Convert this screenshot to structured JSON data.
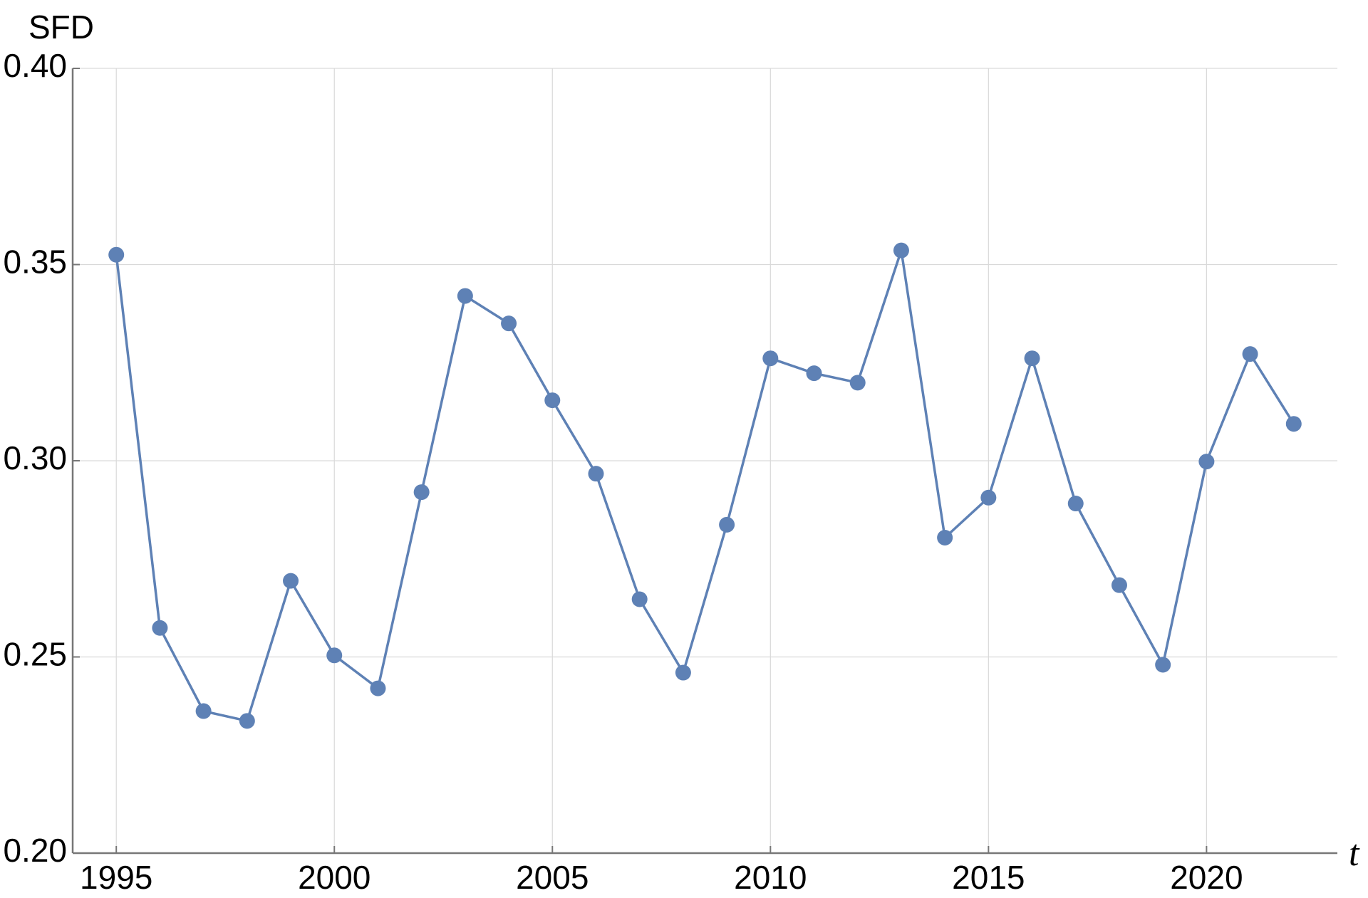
{
  "chart_data": {
    "type": "line",
    "ylabel": "SFD",
    "xlabel": "t",
    "x": [
      1995,
      1996,
      1997,
      1998,
      1999,
      2000,
      2001,
      2002,
      2003,
      2004,
      2005,
      2006,
      2007,
      2008,
      2009,
      2010,
      2011,
      2012,
      2013,
      2014,
      2015,
      2016,
      2017,
      2018,
      2019,
      2020,
      2021,
      2022
    ],
    "series": [
      {
        "color": "#5e81b5",
        "values": [
          0.3525,
          0.2574,
          0.2362,
          0.2337,
          0.2694,
          0.2504,
          0.242,
          0.292,
          0.342,
          0.335,
          0.3154,
          0.2967,
          0.2647,
          0.246,
          0.2837,
          0.3261,
          0.3223,
          0.3199,
          0.3536,
          0.2804,
          0.2906,
          0.3261,
          0.2891,
          0.2683,
          0.248,
          0.2998,
          0.3272,
          0.3094
        ]
      }
    ],
    "xlim": [
      1994,
      2023
    ],
    "xticks": [
      1995,
      2000,
      2005,
      2010,
      2015,
      2020
    ],
    "ylim": [
      0.2,
      0.4
    ],
    "yticks": [
      {
        "value": 0.2,
        "label": "0.20"
      },
      0.25,
      {
        "value": 0.3,
        "label": "0.30"
      },
      0.35,
      {
        "value": 0.4,
        "label": "0.40"
      }
    ],
    "grid": true
  }
}
